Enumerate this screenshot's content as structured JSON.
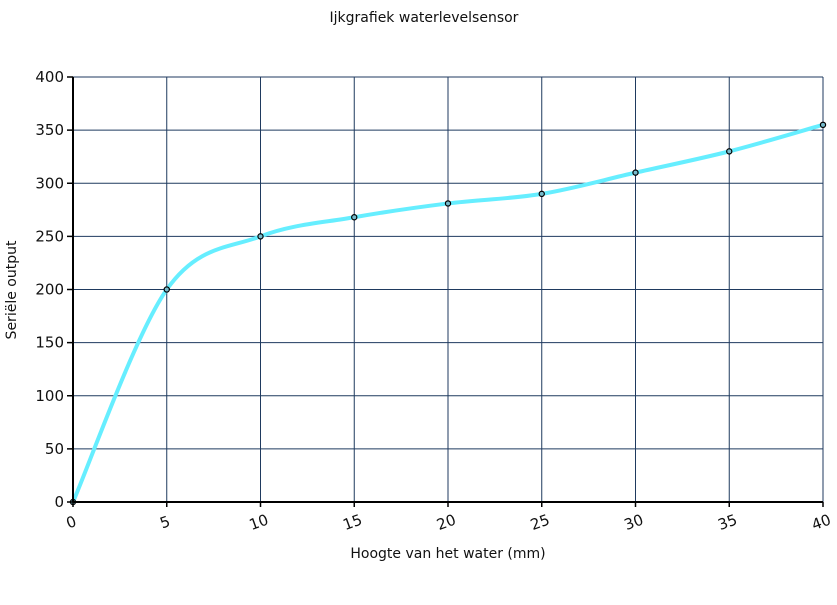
{
  "chart_data": {
    "type": "line",
    "title": "Ijkgrafiek waterlevelsensor",
    "xlabel": "Hoogte van het water (mm)",
    "ylabel": "Seriële output",
    "xlim": [
      0,
      40
    ],
    "ylim": [
      0,
      400
    ],
    "xticks": [
      "0",
      "5",
      "10",
      "15",
      "20",
      "25",
      "30",
      "35",
      "40"
    ],
    "yticks": [
      "0",
      "50",
      "100",
      "150",
      "200",
      "250",
      "300",
      "350",
      "400"
    ],
    "grid": true,
    "series": [
      {
        "x": [
          0,
          5,
          10,
          15,
          20,
          25,
          30,
          35,
          40
        ],
        "y": [
          0,
          200,
          250,
          268,
          281,
          290,
          310,
          330,
          355
        ]
      }
    ],
    "colors": {
      "line": "#66eeff",
      "grid": "#1f3a5f",
      "axis": "#000000",
      "marker_fill": "#77bbcc"
    }
  }
}
